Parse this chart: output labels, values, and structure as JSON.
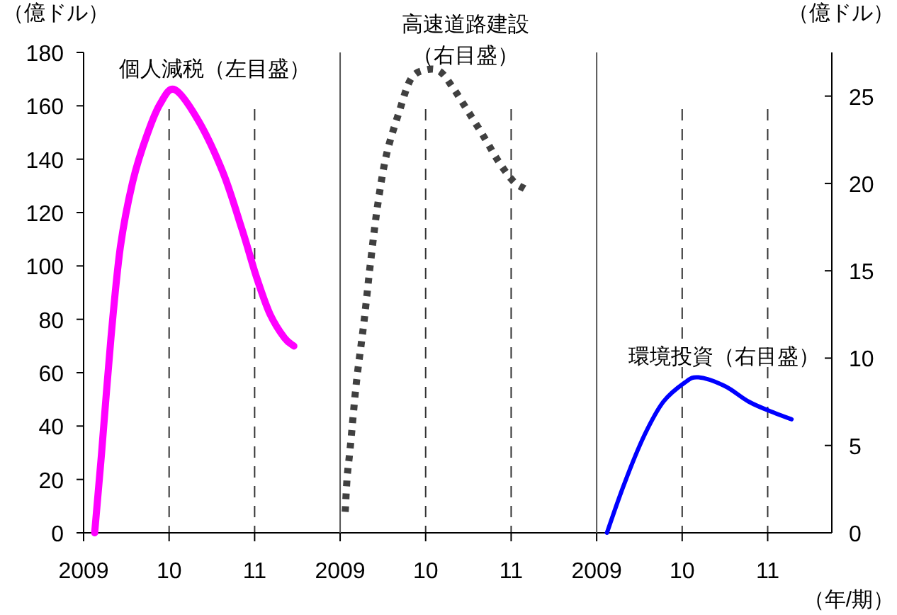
{
  "chart_data": [
    {
      "type": "line",
      "ylabel": "（億ドル）",
      "xlim": [
        2009,
        2012
      ],
      "ylim": [
        0,
        180
      ],
      "yticks": [
        0,
        20,
        40,
        60,
        80,
        100,
        120,
        140,
        160,
        180
      ],
      "xticks": [
        {
          "value": 2009,
          "label": "2009"
        },
        {
          "value": 2010,
          "label": "10"
        },
        {
          "value": 2011,
          "label": "11"
        }
      ],
      "grid": "x",
      "series": [
        {
          "name": "個人減税（左目盛）",
          "color": "#ff00ff",
          "line_style": "solid",
          "x": [
            2009.13,
            2009.21,
            2009.32,
            2009.43,
            2009.57,
            2009.74,
            2009.9,
            2010.07,
            2010.35,
            2010.63,
            2010.85,
            2011.02,
            2011.18,
            2011.35,
            2011.46
          ],
          "values": [
            0,
            30,
            73,
            107,
            131,
            149,
            161,
            166,
            154,
            135,
            114,
            96,
            82,
            73,
            70
          ]
        }
      ]
    },
    {
      "type": "line",
      "xlim": [
        2009,
        2012
      ],
      "ylim": [
        0,
        27.5
      ],
      "xticks": [
        {
          "value": 2009,
          "label": "2009"
        },
        {
          "value": 2010,
          "label": "10"
        },
        {
          "value": 2011,
          "label": "11"
        }
      ],
      "grid": "x",
      "tick_labels": "x",
      "series": [
        {
          "name": "高速道路建設（右目盛）",
          "color": "#404040",
          "line_style": "dotted",
          "x": [
            2009.06,
            2009.08,
            2009.12,
            2009.19,
            2009.28,
            2009.36,
            2009.44,
            2009.54,
            2009.69,
            2009.83,
            2010.0,
            2010.17,
            2010.33,
            2010.5,
            2010.69,
            2010.86,
            2011.03,
            2011.16
          ],
          "values": [
            1.2,
            3.1,
            5.0,
            8.6,
            12.1,
            15.7,
            18.8,
            21.6,
            24.1,
            26.0,
            26.5,
            26.4,
            25.4,
            24.1,
            22.6,
            21.2,
            20.1,
            19.7
          ]
        }
      ]
    },
    {
      "type": "line",
      "ylabel": "（億ドル）",
      "xlabel": "（年/期）",
      "xlim": [
        2009,
        2011.75
      ],
      "ylim": [
        0,
        27.5
      ],
      "yticks": [
        0,
        5,
        10,
        15,
        20,
        25
      ],
      "xticks": [
        {
          "value": 2009,
          "label": "2009"
        },
        {
          "value": 2010,
          "label": "10"
        },
        {
          "value": 2011,
          "label": "11"
        }
      ],
      "grid": "x",
      "series": [
        {
          "name": "環境投資（右目盛）",
          "color": "#0000ff",
          "line_style": "solid",
          "x": [
            2009.12,
            2009.33,
            2009.56,
            2009.78,
            2010.03,
            2010.19,
            2010.5,
            2010.78,
            2011.06,
            2011.28
          ],
          "values": [
            0,
            2.9,
            5.6,
            7.5,
            8.6,
            8.9,
            8.4,
            7.5,
            6.9,
            6.5
          ]
        }
      ]
    }
  ]
}
